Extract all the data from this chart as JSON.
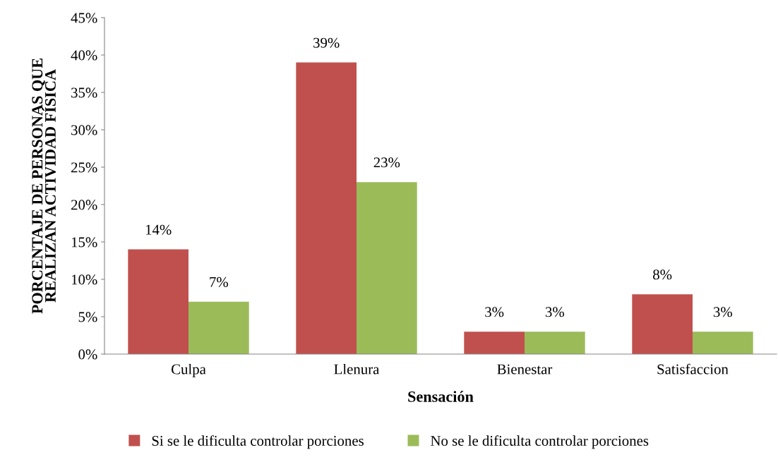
{
  "chart_data": {
    "type": "bar",
    "xlabel": "Sensación",
    "ylabel": "PORCENTAJE DE PERSONAS QUE\nREALIZAN ACTIVIDAD FÍSICA",
    "categories": [
      "Culpa",
      "Llenura",
      "Bienestar",
      "Satisfaccion"
    ],
    "series": [
      {
        "name": "Si se le dificulta controlar porciones",
        "color": "#c0504d",
        "values": [
          14,
          39,
          3,
          8
        ],
        "value_labels": [
          "14%",
          "39%",
          "3%",
          "8%"
        ]
      },
      {
        "name": "No se le dificulta controlar porciones",
        "color": "#9bbb59",
        "values": [
          7,
          23,
          3,
          3
        ],
        "value_labels": [
          "7%",
          "23%",
          "3%",
          "3%"
        ]
      }
    ],
    "ylim": [
      0,
      45
    ],
    "yticks": [
      {
        "value": 0,
        "label": "0%"
      },
      {
        "value": 5,
        "label": "5%"
      },
      {
        "value": 10,
        "label": "10%"
      },
      {
        "value": 15,
        "label": "15%"
      },
      {
        "value": 20,
        "label": "20%"
      },
      {
        "value": 25,
        "label": "25%"
      },
      {
        "value": 30,
        "label": "30%"
      },
      {
        "value": 35,
        "label": "35%"
      },
      {
        "value": 40,
        "label": "40%"
      },
      {
        "value": 45,
        "label": "45%"
      }
    ],
    "grid": false,
    "legend": "bottom"
  }
}
